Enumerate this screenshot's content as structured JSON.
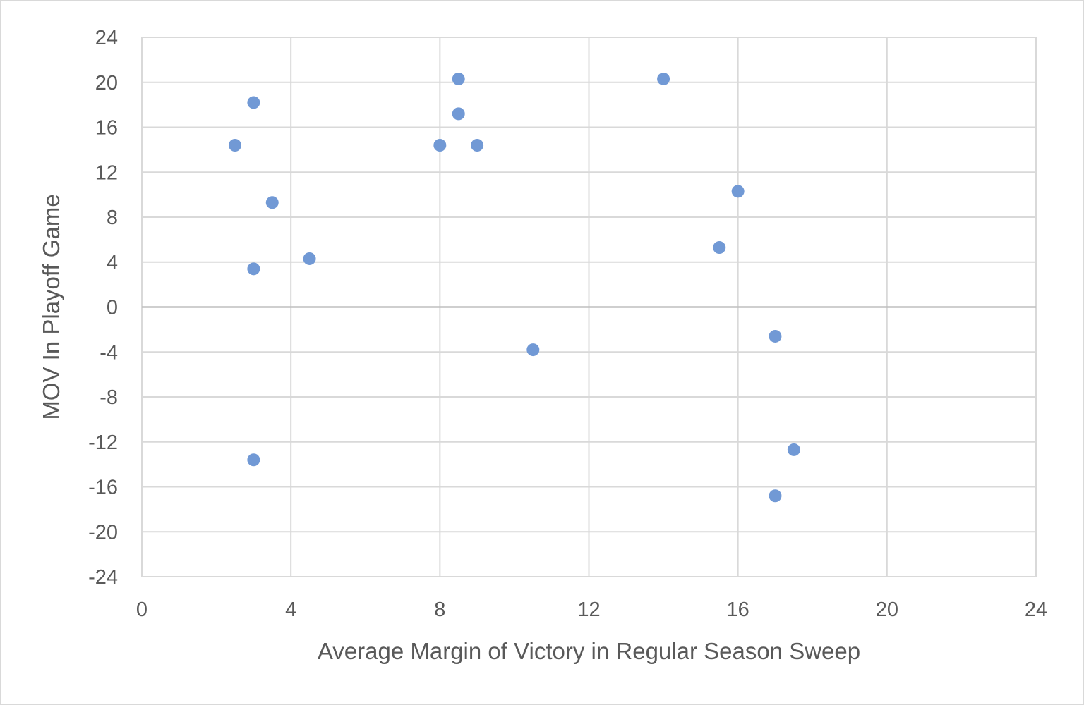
{
  "chart_data": {
    "type": "scatter",
    "title": "",
    "xlabel": "Average Margin of Victory  in Regular  Season Sweep",
    "ylabel": "MOV In Playoff Game",
    "xlim": [
      0,
      24
    ],
    "ylim": [
      -24,
      24
    ],
    "xticks": [
      0,
      4,
      8,
      12,
      16,
      20,
      24
    ],
    "yticks": [
      24,
      20,
      16,
      12,
      8,
      4,
      0,
      -4,
      -8,
      -12,
      -16,
      -20,
      -24
    ],
    "grid": true,
    "legend": "none",
    "marker_color": "#7199D5",
    "series": [
      {
        "x": [
          2.5,
          3.0,
          3.0,
          3.0,
          3.5,
          4.5,
          8.0,
          8.5,
          8.5,
          9.0,
          10.5,
          14.0,
          15.5,
          16.0,
          17.0,
          17.0,
          17.5
        ],
        "y": [
          14.4,
          18.2,
          3.4,
          -13.6,
          9.3,
          4.3,
          14.4,
          20.3,
          17.2,
          14.4,
          -3.8,
          20.3,
          5.3,
          10.3,
          -2.6,
          -16.8,
          -12.7
        ]
      }
    ]
  }
}
